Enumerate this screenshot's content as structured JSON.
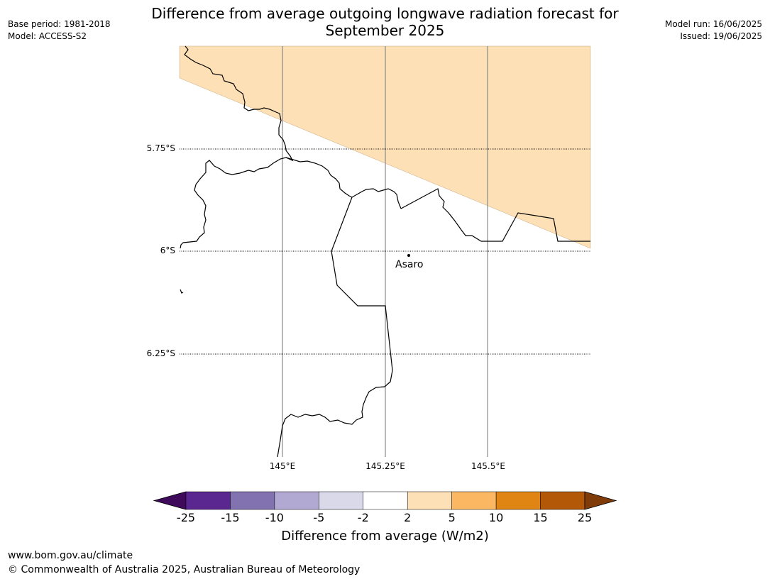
{
  "header": {
    "title_line1": "Difference from average outgoing longwave radiation forecast for",
    "title_line2": "September 2025",
    "base_period": "Base period: 1981-2018",
    "model": "Model: ACCESS-S2",
    "model_run": "Model run: 16/06/2025",
    "issued": "Issued: 19/06/2025"
  },
  "map": {
    "lat_labels": [
      "5.75°S",
      "6°S",
      "6.25°S"
    ],
    "lon_labels": [
      "145°E",
      "145.25°E",
      "145.5°E"
    ],
    "place": "Asaro",
    "anomaly_fill_color": "#fde0b5",
    "anomaly_category": "2 to 5"
  },
  "colorbar": {
    "ticks": [
      "-25",
      "-15",
      "-10",
      "-5",
      "-2",
      "2",
      "5",
      "10",
      "15",
      "25"
    ],
    "colors": [
      "#3f0a5c",
      "#5a2690",
      "#8273b0",
      "#b2a9d3",
      "#d9d9ea",
      "#ffffff",
      "#fde0b5",
      "#fbb761",
      "#e08413",
      "#b35806",
      "#7f3b08"
    ],
    "label": "Difference from average (W/m2)"
  },
  "footer": {
    "url": "www.bom.gov.au/climate",
    "copyright": "© Commonwealth of Australia 2025, Australian Bureau of Meteorology"
  }
}
